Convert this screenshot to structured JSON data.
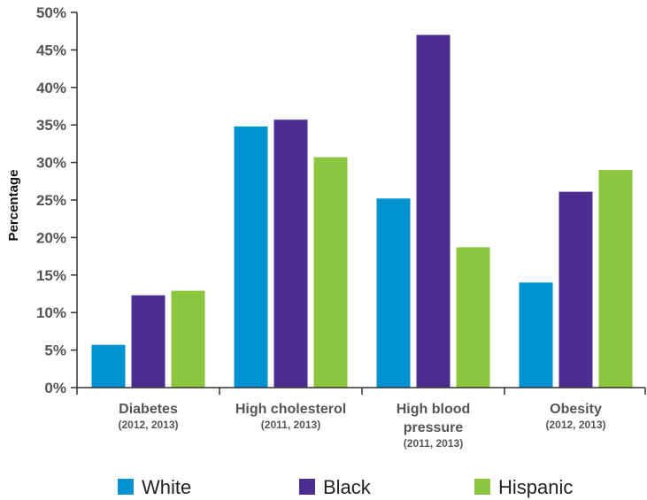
{
  "chart_data": {
    "type": "bar",
    "ylabel": "Percentage",
    "xlabel": "",
    "ylim": [
      0,
      50
    ],
    "yticks": [
      "0%",
      "5%",
      "10%",
      "15%",
      "20%",
      "25%",
      "30%",
      "35%",
      "40%",
      "45%",
      "50%"
    ],
    "categories": [
      {
        "name": [
          "Diabetes"
        ],
        "years": "(2012, 2013)"
      },
      {
        "name": [
          "High cholesterol"
        ],
        "years": "(2011, 2013)"
      },
      {
        "name": [
          "High blood",
          "pressure"
        ],
        "years": "(2011, 2013)"
      },
      {
        "name": [
          "Obesity"
        ],
        "years": "(2012, 2013)"
      }
    ],
    "series": [
      {
        "name": "White",
        "color": "#0092D0",
        "values": [
          5.7,
          34.8,
          25.2,
          14.0
        ]
      },
      {
        "name": "Black",
        "color": "#4B2E8F",
        "values": [
          12.3,
          35.7,
          47.0,
          26.1
        ]
      },
      {
        "name": "Hispanic",
        "color": "#8CC63F",
        "values": [
          12.9,
          30.7,
          18.7,
          29.0
        ]
      }
    ],
    "grid": false,
    "legend_position": "bottom"
  }
}
